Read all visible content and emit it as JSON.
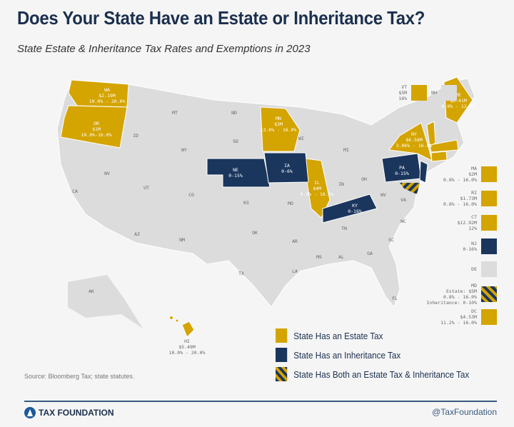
{
  "title": "Does Your State Have an Estate or Inheritance Tax?",
  "subtitle": "State Estate & Inheritance Tax Rates and Exemptions in 2023",
  "colors": {
    "estate": "#d4a400",
    "inheritance": "#1b365d",
    "none": "#dcdcdc",
    "text": "#1b2f4e"
  },
  "states_no_tax": [
    "MT",
    "ND",
    "SD",
    "WY",
    "ID",
    "NV",
    "UT",
    "CO",
    "CA",
    "AZ",
    "NM",
    "KS",
    "OK",
    "TX",
    "MO",
    "AR",
    "LA",
    "MS",
    "AL",
    "GA",
    "FL",
    "SC",
    "NC",
    "TN",
    "VA",
    "WV",
    "OH",
    "IN",
    "MI",
    "WI",
    "AK"
  ],
  "estate_states": {
    "WA": {
      "abbr": "WA",
      "exemption": "$2.19M",
      "rate": "10.0% - 20.0%"
    },
    "OR": {
      "abbr": "OR",
      "exemption": "$1M",
      "rate": "10.0%-16.0%"
    },
    "MN": {
      "abbr": "MN",
      "exemption": "$3M",
      "rate": "13.0% - 16.0%"
    },
    "IL": {
      "abbr": "IL",
      "exemption": "$4M",
      "rate": "0.8% - 16.0%"
    },
    "NY": {
      "abbr": "NY",
      "exemption": "$6.58M",
      "rate": "3.06% - 16.0%"
    },
    "ME": {
      "abbr": "ME",
      "exemption": "$6.41M",
      "rate": "8.0% - 12.0%"
    },
    "HI": {
      "abbr": "HI",
      "exemption": "$5.49M",
      "rate": "10.0% - 20.0%"
    }
  },
  "inheritance_states": {
    "NE": {
      "abbr": "NE",
      "rate": "0-15%"
    },
    "IA": {
      "abbr": "IA",
      "rate": "0-6%"
    },
    "KY": {
      "abbr": "KY",
      "rate": "0-16%"
    },
    "PA": {
      "abbr": "PA",
      "rate": "0-15%"
    }
  },
  "vt": {
    "abbr": "VT",
    "exemption": "$5M",
    "rate": "16%"
  },
  "nh": {
    "abbr": "NH"
  },
  "side_legend": [
    {
      "abbr": "MA",
      "l1": "$2M",
      "l2": "0.8% - 16.0%",
      "type": "estate"
    },
    {
      "abbr": "RI",
      "l1": "$1.73M",
      "l2": "0.8% - 16.0%",
      "type": "estate"
    },
    {
      "abbr": "CT",
      "l1": "$12.92M",
      "l2": "12%",
      "type": "estate"
    },
    {
      "abbr": "NJ",
      "l1": "0-16%",
      "l2": "",
      "type": "inheritance"
    },
    {
      "abbr": "DE",
      "l1": "",
      "l2": "",
      "type": "none"
    },
    {
      "abbr": "MD",
      "l1": "Estate: $5M",
      "l2": "0.8% - 16.0%",
      "l3": "Inheritance: 0-10%",
      "type": "both"
    },
    {
      "abbr": "DC",
      "l1": "$4.53M",
      "l2": "11.2% - 16.0%",
      "type": "estate"
    }
  ],
  "legend": {
    "estate": "State Has an Estate Tax",
    "inheritance": "State Has an Inheritance Tax",
    "both": "State Has Both an Estate Tax & Inheritance Tax"
  },
  "source": "Source: Bloomberg Tax; state statutes.",
  "brand": "TAX FOUNDATION",
  "handle": "@TaxFoundation"
}
